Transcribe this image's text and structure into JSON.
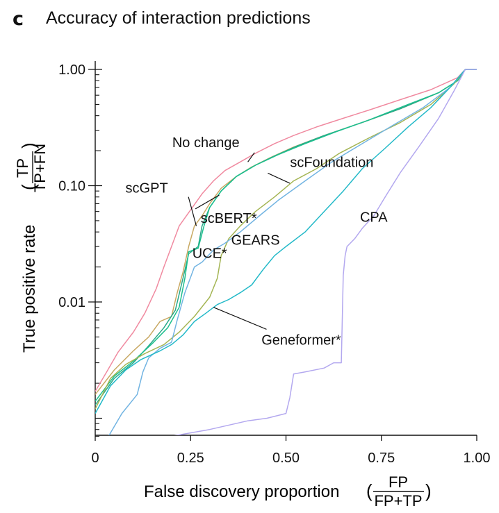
{
  "panel_letter": "c",
  "title": "Accuracy of interaction predictions",
  "chart_data": {
    "type": "line",
    "title": "Accuracy of interaction predictions",
    "xlabel": "False discovery proportion",
    "xlabel_fraction": {
      "numerator": "FP",
      "denominator": "FP+TP"
    },
    "ylabel": "True positive rate",
    "ylabel_fraction": {
      "numerator": "TP",
      "denominator": "TP+FN"
    },
    "xlim": [
      0,
      1.0
    ],
    "ylim": [
      0.0007,
      1.0
    ],
    "yscale": "log",
    "grid": false,
    "legend": "inline-labels",
    "x_ticks": [
      0,
      0.25,
      0.5,
      0.75,
      1.0
    ],
    "x_tick_labels": [
      "0",
      "0.25",
      "0.50",
      "0.75",
      "1.00"
    ],
    "y_ticks": [
      0.01,
      0.1,
      1.0
    ],
    "y_tick_labels": [
      "0.01",
      "0.10",
      "1.00"
    ],
    "series": [
      {
        "name": "No change",
        "color": "#f08aa0",
        "points": [
          [
            0,
            0.0017
          ],
          [
            0.03,
            0.0025
          ],
          [
            0.06,
            0.0037
          ],
          [
            0.1,
            0.0055
          ],
          [
            0.13,
            0.008
          ],
          [
            0.16,
            0.013
          ],
          [
            0.18,
            0.02
          ],
          [
            0.2,
            0.03
          ],
          [
            0.22,
            0.045
          ],
          [
            0.25,
            0.062
          ],
          [
            0.28,
            0.085
          ],
          [
            0.31,
            0.11
          ],
          [
            0.34,
            0.135
          ],
          [
            0.38,
            0.16
          ],
          [
            0.42,
            0.19
          ],
          [
            0.47,
            0.23
          ],
          [
            0.52,
            0.27
          ],
          [
            0.58,
            0.32
          ],
          [
            0.65,
            0.38
          ],
          [
            0.72,
            0.45
          ],
          [
            0.8,
            0.55
          ],
          [
            0.88,
            0.67
          ],
          [
            0.95,
            0.85
          ],
          [
            0.97,
            1.0
          ],
          [
            1.0,
            1.0
          ]
        ]
      },
      {
        "name": "scGPT",
        "color": "#c8a862",
        "points": [
          [
            0,
            0.0016
          ],
          [
            0.05,
            0.0026
          ],
          [
            0.1,
            0.0038
          ],
          [
            0.14,
            0.005
          ],
          [
            0.17,
            0.0068
          ],
          [
            0.2,
            0.0075
          ],
          [
            0.215,
            0.012
          ],
          [
            0.23,
            0.018
          ],
          [
            0.245,
            0.03
          ],
          [
            0.26,
            0.045
          ],
          [
            0.28,
            0.055
          ],
          [
            0.3,
            0.07
          ],
          [
            0.33,
            0.095
          ],
          [
            0.37,
            0.12
          ],
          [
            0.41,
            0.145
          ],
          [
            0.46,
            0.175
          ],
          [
            0.52,
            0.215
          ],
          [
            0.6,
            0.27
          ],
          [
            0.7,
            0.35
          ],
          [
            0.8,
            0.46
          ],
          [
            0.9,
            0.63
          ],
          [
            0.95,
            0.8
          ],
          [
            0.97,
            1.0
          ],
          [
            1.0,
            1.0
          ]
        ]
      },
      {
        "name": "scBERT*",
        "color": "#2aa889",
        "points": [
          [
            0,
            0.0013
          ],
          [
            0.05,
            0.0022
          ],
          [
            0.1,
            0.003
          ],
          [
            0.14,
            0.0042
          ],
          [
            0.18,
            0.006
          ],
          [
            0.21,
            0.0085
          ],
          [
            0.23,
            0.016
          ],
          [
            0.245,
            0.026
          ],
          [
            0.27,
            0.03
          ],
          [
            0.28,
            0.045
          ],
          [
            0.3,
            0.065
          ],
          [
            0.33,
            0.09
          ],
          [
            0.37,
            0.12
          ],
          [
            0.42,
            0.15
          ],
          [
            0.47,
            0.18
          ],
          [
            0.53,
            0.22
          ],
          [
            0.6,
            0.27
          ],
          [
            0.7,
            0.35
          ],
          [
            0.8,
            0.46
          ],
          [
            0.9,
            0.63
          ],
          [
            0.95,
            0.8
          ],
          [
            0.97,
            1.0
          ],
          [
            1.0,
            1.0
          ]
        ]
      },
      {
        "name": "UCE*",
        "color": "#1dbf8e",
        "points": [
          [
            0,
            0.0014
          ],
          [
            0.05,
            0.0023
          ],
          [
            0.1,
            0.0031
          ],
          [
            0.15,
            0.0044
          ],
          [
            0.19,
            0.006
          ],
          [
            0.22,
            0.009
          ],
          [
            0.235,
            0.016
          ],
          [
            0.245,
            0.027
          ],
          [
            0.27,
            0.029
          ],
          [
            0.285,
            0.045
          ],
          [
            0.3,
            0.065
          ],
          [
            0.33,
            0.09
          ],
          [
            0.37,
            0.12
          ],
          [
            0.42,
            0.15
          ],
          [
            0.48,
            0.185
          ],
          [
            0.55,
            0.23
          ],
          [
            0.63,
            0.29
          ],
          [
            0.72,
            0.37
          ],
          [
            0.82,
            0.5
          ],
          [
            0.9,
            0.63
          ],
          [
            0.95,
            0.8
          ],
          [
            0.97,
            1.0
          ],
          [
            1.0,
            1.0
          ]
        ]
      },
      {
        "name": "scFoundation",
        "color": "#a4b554",
        "points": [
          [
            0,
            0.0012
          ],
          [
            0.04,
            0.0022
          ],
          [
            0.08,
            0.0029
          ],
          [
            0.13,
            0.0036
          ],
          [
            0.18,
            0.0043
          ],
          [
            0.22,
            0.0055
          ],
          [
            0.26,
            0.0075
          ],
          [
            0.3,
            0.011
          ],
          [
            0.32,
            0.016
          ],
          [
            0.33,
            0.025
          ],
          [
            0.35,
            0.035
          ],
          [
            0.38,
            0.045
          ],
          [
            0.42,
            0.06
          ],
          [
            0.47,
            0.08
          ],
          [
            0.52,
            0.11
          ],
          [
            0.58,
            0.14
          ],
          [
            0.64,
            0.19
          ],
          [
            0.72,
            0.26
          ],
          [
            0.8,
            0.35
          ],
          [
            0.88,
            0.5
          ],
          [
            0.94,
            0.75
          ],
          [
            0.97,
            1.0
          ],
          [
            1.0,
            1.0
          ]
        ]
      },
      {
        "name": "GEARS",
        "color": "#72b4e2",
        "points": [
          [
            0.035,
            0.0007
          ],
          [
            0.07,
            0.0011
          ],
          [
            0.11,
            0.0016
          ],
          [
            0.125,
            0.0025
          ],
          [
            0.14,
            0.0033
          ],
          [
            0.17,
            0.004
          ],
          [
            0.2,
            0.0045
          ],
          [
            0.215,
            0.007
          ],
          [
            0.235,
            0.012
          ],
          [
            0.26,
            0.02
          ],
          [
            0.28,
            0.022
          ],
          [
            0.31,
            0.028
          ],
          [
            0.34,
            0.032
          ],
          [
            0.38,
            0.04
          ],
          [
            0.43,
            0.055
          ],
          [
            0.48,
            0.075
          ],
          [
            0.55,
            0.11
          ],
          [
            0.62,
            0.16
          ],
          [
            0.7,
            0.23
          ],
          [
            0.78,
            0.33
          ],
          [
            0.86,
            0.47
          ],
          [
            0.93,
            0.7
          ],
          [
            0.97,
            1.0
          ],
          [
            1.0,
            1.0
          ]
        ]
      },
      {
        "name": "Geneformer*",
        "color": "#22b9c8",
        "points": [
          [
            0,
            0.0011
          ],
          [
            0.04,
            0.0019
          ],
          [
            0.08,
            0.0026
          ],
          [
            0.12,
            0.0032
          ],
          [
            0.17,
            0.0038
          ],
          [
            0.2,
            0.0043
          ],
          [
            0.23,
            0.0052
          ],
          [
            0.26,
            0.0068
          ],
          [
            0.29,
            0.008
          ],
          [
            0.32,
            0.0095
          ],
          [
            0.35,
            0.0105
          ],
          [
            0.38,
            0.012
          ],
          [
            0.41,
            0.014
          ],
          [
            0.44,
            0.019
          ],
          [
            0.47,
            0.025
          ],
          [
            0.5,
            0.03
          ],
          [
            0.55,
            0.04
          ],
          [
            0.6,
            0.06
          ],
          [
            0.65,
            0.09
          ],
          [
            0.7,
            0.14
          ],
          [
            0.76,
            0.21
          ],
          [
            0.82,
            0.32
          ],
          [
            0.88,
            0.47
          ],
          [
            0.93,
            0.7
          ],
          [
            0.97,
            1.0
          ],
          [
            1.0,
            1.0
          ]
        ]
      },
      {
        "name": "CPA",
        "color": "#b3a8ef",
        "points": [
          [
            0.2,
            0.0007
          ],
          [
            0.3,
            0.0008
          ],
          [
            0.4,
            0.00095
          ],
          [
            0.45,
            0.001
          ],
          [
            0.5,
            0.0011
          ],
          [
            0.51,
            0.0015
          ],
          [
            0.52,
            0.0024
          ],
          [
            0.55,
            0.0025
          ],
          [
            0.6,
            0.0027
          ],
          [
            0.625,
            0.003
          ],
          [
            0.645,
            0.003
          ],
          [
            0.65,
            0.017
          ],
          [
            0.655,
            0.025
          ],
          [
            0.66,
            0.03
          ],
          [
            0.68,
            0.035
          ],
          [
            0.7,
            0.043
          ],
          [
            0.73,
            0.055
          ],
          [
            0.76,
            0.08
          ],
          [
            0.8,
            0.13
          ],
          [
            0.85,
            0.22
          ],
          [
            0.9,
            0.38
          ],
          [
            0.94,
            0.65
          ],
          [
            0.97,
            1.0
          ],
          [
            1.0,
            1.0
          ]
        ]
      }
    ],
    "annotations": [
      {
        "text": "No change",
        "series": "No change",
        "label_at": [
          0.29,
          0.215
        ],
        "pointer_to": [
          0.4,
          0.16
        ]
      },
      {
        "text": "scFoundation",
        "series": "scFoundation",
        "label_at": [
          0.62,
          0.145
        ],
        "pointer_to": [
          0.51,
          0.105
        ]
      },
      {
        "text": "scGPT",
        "series": "scGPT",
        "label_at": [
          0.135,
          0.087
        ],
        "pointer_to": [
          0.265,
          0.045
        ]
      },
      {
        "text": "scBERT*",
        "series": "scBERT*",
        "label_at": [
          0.35,
          0.048
        ],
        "pointer_to": [
          0.325,
          0.083
        ]
      },
      {
        "text": "GEARS",
        "series": "GEARS",
        "label_at": [
          0.42,
          0.031
        ],
        "pointer_to": null
      },
      {
        "text": "UCE*",
        "series": "UCE*",
        "label_at": [
          0.3,
          0.024
        ],
        "pointer_to": null
      },
      {
        "text": "Geneformer*",
        "series": "Geneformer*",
        "label_at": [
          0.54,
          0.0043
        ],
        "pointer_to": [
          0.31,
          0.009
        ]
      },
      {
        "text": "CPA",
        "series": "CPA",
        "label_at": [
          0.73,
          0.049
        ],
        "pointer_to": null
      }
    ]
  }
}
